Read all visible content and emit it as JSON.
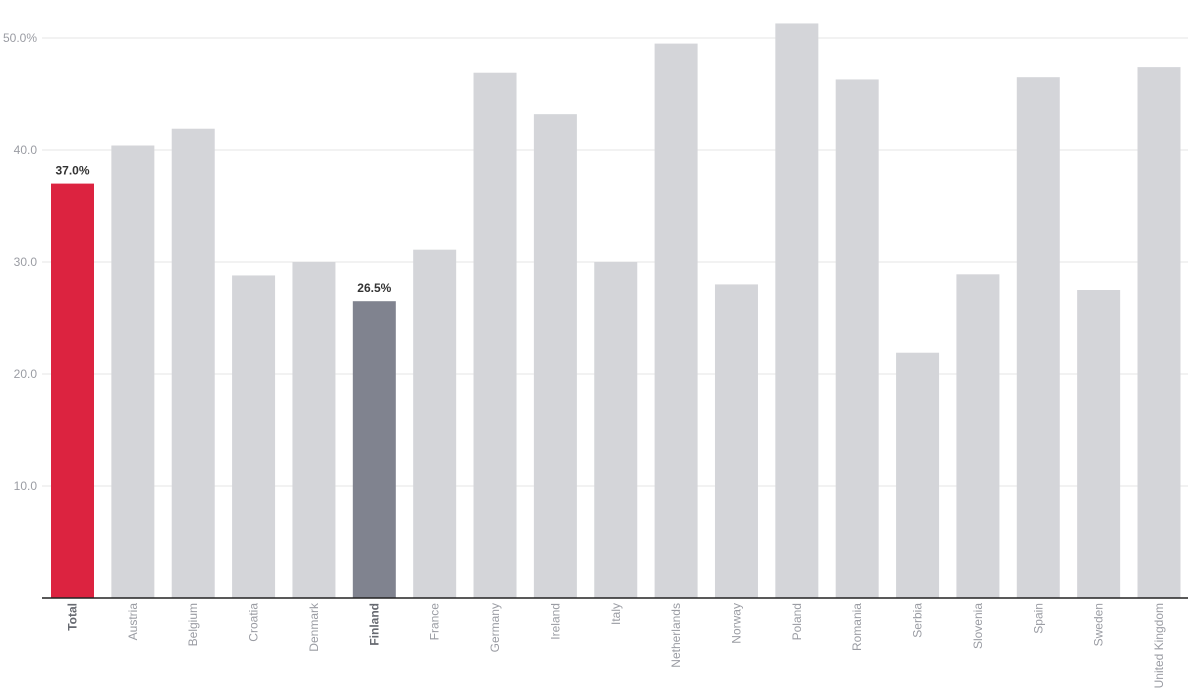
{
  "chart_data": {
    "type": "bar",
    "categories": [
      "Total",
      "Austria",
      "Belgium",
      "Croatia",
      "Denmark",
      "Finland",
      "France",
      "Germany",
      "Ireland",
      "Italy",
      "Netherlands",
      "Norway",
      "Poland",
      "Romania",
      "Serbia",
      "Slovenia",
      "Spain",
      "Sweden",
      "United Kingdom"
    ],
    "values": [
      37.0,
      40.4,
      41.9,
      28.8,
      30.0,
      26.5,
      31.1,
      46.9,
      43.2,
      30.0,
      49.5,
      28.0,
      51.3,
      46.3,
      21.9,
      28.9,
      46.5,
      27.5,
      47.4
    ],
    "y_ticks": [
      {
        "value": 10,
        "label": "10.0"
      },
      {
        "value": 20,
        "label": "20.0"
      },
      {
        "value": 30,
        "label": "30.0"
      },
      {
        "value": 40,
        "label": "40.0"
      },
      {
        "value": 50,
        "label": "50.0%"
      }
    ],
    "ylim": [
      0,
      50
    ],
    "grid": true,
    "highlights": [
      {
        "category": "Total",
        "color": "#dc2340",
        "label": "37.0%"
      },
      {
        "category": "Finland",
        "color": "#80838f",
        "label": "26.5%"
      }
    ],
    "default_color": "#d4d5d9",
    "axis_color": "#222222"
  }
}
